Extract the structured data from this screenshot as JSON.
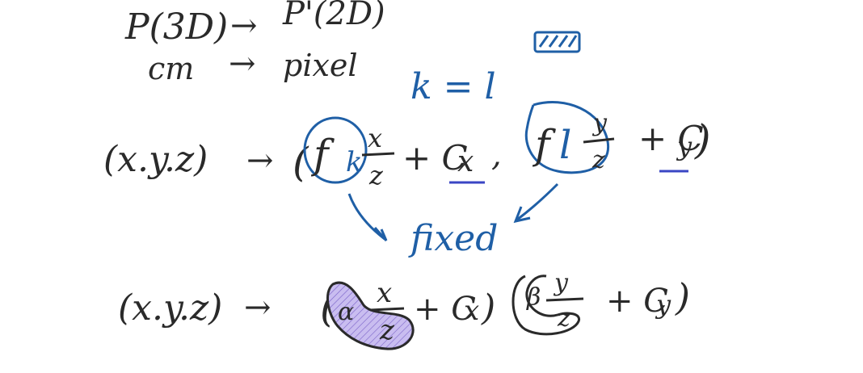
{
  "colors": {
    "black_ink": "#2a2a2a",
    "blue_ink": "#1f5fa6",
    "underline_ink": "#3a46c4",
    "purple_fill": "#b9a6e0"
  },
  "line1": {
    "left": "P(3D)",
    "arrow": "→",
    "right": "P'(2D)"
  },
  "line2": {
    "left": "cm",
    "arrow": "→",
    "right": "pixel"
  },
  "blue_note": {
    "equation": "k = l",
    "fixed_label": "fixed"
  },
  "eq1": {
    "lhs": "(x.y.z)",
    "arrow": "→",
    "open_paren": "(",
    "f1": "f",
    "k": "k",
    "frac1_num": "x",
    "frac1_den": "z",
    "plus_c": "+ C",
    "c_sub1": "x",
    "comma": ",",
    "f2": "f",
    "l": "l",
    "frac2_num": "y",
    "frac2_den": "z",
    "plus_c2": "+ C",
    "c_sub2": "y",
    "close_paren": ")"
  },
  "eq2": {
    "lhs": "(x.y.z)",
    "arrow": "→",
    "open_paren": "(",
    "alpha": "α",
    "frac1_num": "x",
    "frac1_den": "z",
    "plus_c": "+ C",
    "c_sub1": "x",
    "close1": ")",
    "beta": "β",
    "frac2_num": "y",
    "frac2_den": "z",
    "plus_c2": "+ C",
    "c_sub2": "y",
    "close_paren": ")"
  }
}
